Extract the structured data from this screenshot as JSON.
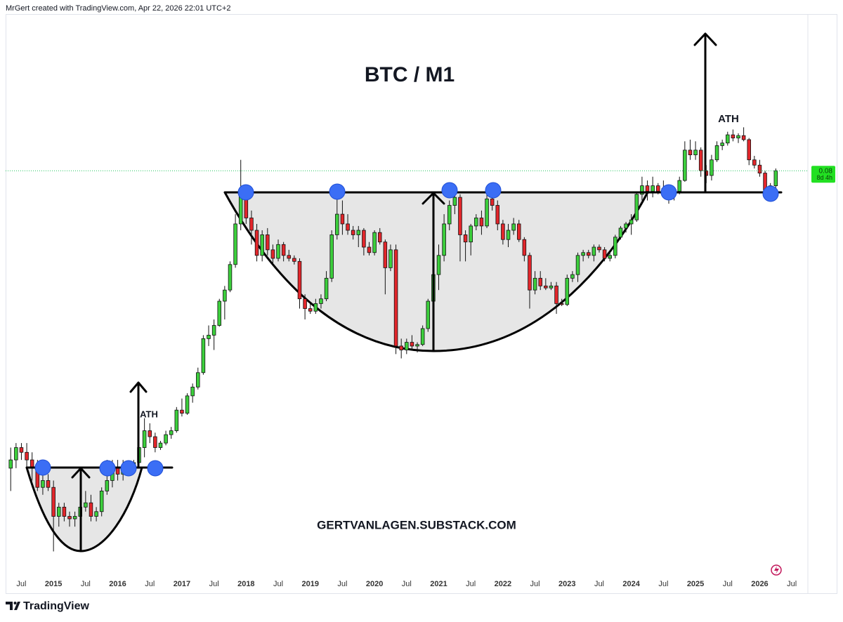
{
  "header": "MrGert created with TradingView.com, Apr 22, 2026 22:01 UTC+2",
  "footer": "TradingView",
  "chart_data": {
    "type": "candlestick",
    "title": "BTC / M1",
    "annotations": [
      "ATH",
      "ATH",
      "GERTVANLAGEN.SUBSTACK.COM"
    ],
    "last_price": 0.08,
    "countdown": "8d 4h",
    "yscale": "log",
    "ylim": [
      0.001,
      0.5
    ],
    "xlim": [
      "2014-03",
      "2026-10"
    ],
    "up_color": "#3ccf3c",
    "down_color": "#e3262b",
    "xticks": [
      {
        "value": "2014-07",
        "label": "Jul"
      },
      {
        "value": "2015-01",
        "label": "2015"
      },
      {
        "value": "2015-07",
        "label": "Jul"
      },
      {
        "value": "2016-01",
        "label": "2016"
      },
      {
        "value": "2016-07",
        "label": "Jul"
      },
      {
        "value": "2017-01",
        "label": "2017"
      },
      {
        "value": "2017-07",
        "label": "Jul"
      },
      {
        "value": "2018-01",
        "label": "2018"
      },
      {
        "value": "2018-07",
        "label": "Jul"
      },
      {
        "value": "2019-01",
        "label": "2019"
      },
      {
        "value": "2019-07",
        "label": "Jul"
      },
      {
        "value": "2020-01",
        "label": "2020"
      },
      {
        "value": "2020-07",
        "label": "Jul"
      },
      {
        "value": "2021-01",
        "label": "2021"
      },
      {
        "value": "2021-07",
        "label": "Jul"
      },
      {
        "value": "2022-01",
        "label": "2022"
      },
      {
        "value": "2022-07",
        "label": "Jul"
      },
      {
        "value": "2023-01",
        "label": "2023"
      },
      {
        "value": "2023-07",
        "label": "Jul"
      },
      {
        "value": "2024-01",
        "label": "2024"
      },
      {
        "value": "2024-07",
        "label": "Jul"
      },
      {
        "value": "2025-01",
        "label": "2025"
      },
      {
        "value": "2025-07",
        "label": "Jul"
      },
      {
        "value": "2026-01",
        "label": "2026"
      },
      {
        "value": "2026-07",
        "label": "Jul"
      }
    ],
    "x": [
      "2014-05",
      "2014-06",
      "2014-07",
      "2014-08",
      "2014-09",
      "2014-10",
      "2014-11",
      "2014-12",
      "2015-01",
      "2015-02",
      "2015-03",
      "2015-04",
      "2015-05",
      "2015-06",
      "2015-07",
      "2015-08",
      "2015-09",
      "2015-10",
      "2015-11",
      "2015-12",
      "2016-01",
      "2016-02",
      "2016-03",
      "2016-04",
      "2016-05",
      "2016-06",
      "2016-07",
      "2016-08",
      "2016-09",
      "2016-10",
      "2016-11",
      "2016-12",
      "2017-01",
      "2017-02",
      "2017-03",
      "2017-04",
      "2017-05",
      "2017-06",
      "2017-07",
      "2017-08",
      "2017-09",
      "2017-10",
      "2017-11",
      "2017-12",
      "2018-01",
      "2018-02",
      "2018-03",
      "2018-04",
      "2018-05",
      "2018-06",
      "2018-07",
      "2018-08",
      "2018-09",
      "2018-10",
      "2018-11",
      "2018-12",
      "2019-01",
      "2019-02",
      "2019-03",
      "2019-04",
      "2019-05",
      "2019-06",
      "2019-07",
      "2019-08",
      "2019-09",
      "2019-10",
      "2019-11",
      "2019-12",
      "2020-01",
      "2020-02",
      "2020-03",
      "2020-04",
      "2020-05",
      "2020-06",
      "2020-07",
      "2020-08",
      "2020-09",
      "2020-10",
      "2020-11",
      "2020-12",
      "2021-01",
      "2021-02",
      "2021-03",
      "2021-04",
      "2021-05",
      "2021-06",
      "2021-07",
      "2021-08",
      "2021-09",
      "2021-10",
      "2021-11",
      "2021-12",
      "2022-01",
      "2022-02",
      "2022-03",
      "2022-04",
      "2022-05",
      "2022-06",
      "2022-07",
      "2022-08",
      "2022-09",
      "2022-10",
      "2022-11",
      "2022-12",
      "2023-01",
      "2023-02",
      "2023-03",
      "2023-04",
      "2023-05",
      "2023-06",
      "2023-07",
      "2023-08",
      "2023-09",
      "2023-10",
      "2023-11",
      "2023-12",
      "2024-01",
      "2024-02",
      "2024-03",
      "2024-04",
      "2024-05",
      "2024-06",
      "2024-07",
      "2024-08",
      "2024-09",
      "2024-10",
      "2024-11",
      "2024-12",
      "2025-01",
      "2025-02",
      "2025-03",
      "2025-04",
      "2025-05",
      "2025-06",
      "2025-07",
      "2025-08",
      "2025-09",
      "2025-10",
      "2025-11",
      "2025-12",
      "2026-01",
      "2026-02",
      "2026-03",
      "2026-04"
    ],
    "ohlc": [
      [
        0.0032,
        0.004,
        0.0025,
        0.0035
      ],
      [
        0.0035,
        0.0042,
        0.0032,
        0.004
      ],
      [
        0.004,
        0.0042,
        0.0035,
        0.0038
      ],
      [
        0.0038,
        0.0042,
        0.0032,
        0.0035
      ],
      [
        0.0035,
        0.0038,
        0.0028,
        0.0032
      ],
      [
        0.0032,
        0.0035,
        0.0025,
        0.0026
      ],
      [
        0.0026,
        0.0032,
        0.0024,
        0.0028
      ],
      [
        0.0028,
        0.003,
        0.0025,
        0.0026
      ],
      [
        0.0026,
        0.0028,
        0.0013,
        0.0019
      ],
      [
        0.0019,
        0.0022,
        0.0017,
        0.0021
      ],
      [
        0.0021,
        0.0022,
        0.0018,
        0.0019
      ],
      [
        0.0019,
        0.002,
        0.0017,
        0.00185
      ],
      [
        0.00185,
        0.002,
        0.0017,
        0.0019
      ],
      [
        0.0019,
        0.0022,
        0.0018,
        0.0021
      ],
      [
        0.0021,
        0.0025,
        0.002,
        0.0022
      ],
      [
        0.0022,
        0.0024,
        0.0018,
        0.0019
      ],
      [
        0.0019,
        0.0021,
        0.0018,
        0.002
      ],
      [
        0.002,
        0.0026,
        0.0019,
        0.0025
      ],
      [
        0.0025,
        0.0035,
        0.0024,
        0.0028
      ],
      [
        0.0028,
        0.0035,
        0.0026,
        0.0032
      ],
      [
        0.0032,
        0.0035,
        0.0028,
        0.003
      ],
      [
        0.003,
        0.0035,
        0.0028,
        0.0032
      ],
      [
        0.0032,
        0.0034,
        0.003,
        0.0031
      ],
      [
        0.0031,
        0.0035,
        0.003,
        0.0034
      ],
      [
        0.0034,
        0.0042,
        0.0033,
        0.004
      ],
      [
        0.004,
        0.0055,
        0.0036,
        0.0048
      ],
      [
        0.0048,
        0.0052,
        0.0042,
        0.0045
      ],
      [
        0.0045,
        0.0047,
        0.0038,
        0.004
      ],
      [
        0.004,
        0.0043,
        0.0039,
        0.0042
      ],
      [
        0.0042,
        0.0048,
        0.0041,
        0.0046
      ],
      [
        0.0046,
        0.005,
        0.0044,
        0.0048
      ],
      [
        0.0048,
        0.0062,
        0.0047,
        0.006
      ],
      [
        0.006,
        0.0068,
        0.0056,
        0.0058
      ],
      [
        0.0058,
        0.0072,
        0.0057,
        0.007
      ],
      [
        0.007,
        0.008,
        0.0065,
        0.0077
      ],
      [
        0.0077,
        0.0095,
        0.0075,
        0.009
      ],
      [
        0.009,
        0.0135,
        0.0088,
        0.013
      ],
      [
        0.013,
        0.015,
        0.012,
        0.0135
      ],
      [
        0.0135,
        0.016,
        0.0115,
        0.015
      ],
      [
        0.015,
        0.02,
        0.0148,
        0.0195
      ],
      [
        0.0195,
        0.023,
        0.016,
        0.022
      ],
      [
        0.022,
        0.03,
        0.0215,
        0.029
      ],
      [
        0.029,
        0.05,
        0.028,
        0.045
      ],
      [
        0.045,
        0.09,
        0.042,
        0.062
      ],
      [
        0.062,
        0.068,
        0.045,
        0.048
      ],
      [
        0.048,
        0.052,
        0.036,
        0.042
      ],
      [
        0.042,
        0.045,
        0.03,
        0.032
      ],
      [
        0.032,
        0.042,
        0.03,
        0.04
      ],
      [
        0.04,
        0.043,
        0.032,
        0.034
      ],
      [
        0.034,
        0.036,
        0.029,
        0.031
      ],
      [
        0.031,
        0.038,
        0.03,
        0.036
      ],
      [
        0.036,
        0.037,
        0.03,
        0.032
      ],
      [
        0.032,
        0.034,
        0.03,
        0.031
      ],
      [
        0.031,
        0.032,
        0.029,
        0.03
      ],
      [
        0.03,
        0.031,
        0.018,
        0.02
      ],
      [
        0.02,
        0.021,
        0.016,
        0.018
      ],
      [
        0.018,
        0.019,
        0.017,
        0.0175
      ],
      [
        0.0175,
        0.02,
        0.017,
        0.019
      ],
      [
        0.019,
        0.021,
        0.018,
        0.02
      ],
      [
        0.02,
        0.027,
        0.0195,
        0.025
      ],
      [
        0.025,
        0.042,
        0.024,
        0.04
      ],
      [
        0.04,
        0.068,
        0.038,
        0.05
      ],
      [
        0.05,
        0.058,
        0.04,
        0.045
      ],
      [
        0.045,
        0.05,
        0.04,
        0.042
      ],
      [
        0.042,
        0.044,
        0.038,
        0.04
      ],
      [
        0.04,
        0.044,
        0.035,
        0.042
      ],
      [
        0.042,
        0.043,
        0.032,
        0.035
      ],
      [
        0.035,
        0.037,
        0.032,
        0.033
      ],
      [
        0.033,
        0.042,
        0.032,
        0.041
      ],
      [
        0.041,
        0.043,
        0.036,
        0.037
      ],
      [
        0.037,
        0.038,
        0.021,
        0.028
      ],
      [
        0.028,
        0.036,
        0.027,
        0.034
      ],
      [
        0.034,
        0.036,
        0.011,
        0.012
      ],
      [
        0.012,
        0.013,
        0.0105,
        0.0115
      ],
      [
        0.0115,
        0.013,
        0.011,
        0.0125
      ],
      [
        0.0125,
        0.0135,
        0.0115,
        0.012
      ],
      [
        0.012,
        0.0125,
        0.0112,
        0.0122
      ],
      [
        0.0122,
        0.015,
        0.012,
        0.0145
      ],
      [
        0.0145,
        0.02,
        0.014,
        0.0195
      ],
      [
        0.0195,
        0.028,
        0.019,
        0.026
      ],
      [
        0.026,
        0.036,
        0.022,
        0.032
      ],
      [
        0.032,
        0.05,
        0.03,
        0.045
      ],
      [
        0.045,
        0.058,
        0.042,
        0.055
      ],
      [
        0.055,
        0.065,
        0.05,
        0.06
      ],
      [
        0.06,
        0.062,
        0.03,
        0.04
      ],
      [
        0.04,
        0.042,
        0.03,
        0.037
      ],
      [
        0.037,
        0.045,
        0.032,
        0.044
      ],
      [
        0.044,
        0.05,
        0.042,
        0.048
      ],
      [
        0.048,
        0.052,
        0.04,
        0.044
      ],
      [
        0.044,
        0.062,
        0.043,
        0.059
      ],
      [
        0.059,
        0.066,
        0.052,
        0.055
      ],
      [
        0.055,
        0.058,
        0.042,
        0.045
      ],
      [
        0.045,
        0.047,
        0.036,
        0.038
      ],
      [
        0.038,
        0.045,
        0.035,
        0.042
      ],
      [
        0.042,
        0.048,
        0.04,
        0.045
      ],
      [
        0.045,
        0.047,
        0.037,
        0.038
      ],
      [
        0.038,
        0.039,
        0.03,
        0.032
      ],
      [
        0.032,
        0.033,
        0.018,
        0.022
      ],
      [
        0.022,
        0.027,
        0.021,
        0.025
      ],
      [
        0.025,
        0.027,
        0.022,
        0.023
      ],
      [
        0.023,
        0.025,
        0.022,
        0.0225
      ],
      [
        0.0225,
        0.024,
        0.022,
        0.023
      ],
      [
        0.023,
        0.024,
        0.017,
        0.019
      ],
      [
        0.019,
        0.02,
        0.0185,
        0.0188
      ],
      [
        0.0188,
        0.026,
        0.0185,
        0.025
      ],
      [
        0.025,
        0.027,
        0.024,
        0.026
      ],
      [
        0.026,
        0.033,
        0.024,
        0.032
      ],
      [
        0.032,
        0.034,
        0.03,
        0.033
      ],
      [
        0.033,
        0.034,
        0.031,
        0.032
      ],
      [
        0.032,
        0.036,
        0.03,
        0.035
      ],
      [
        0.035,
        0.036,
        0.033,
        0.034
      ],
      [
        0.034,
        0.035,
        0.03,
        0.031
      ],
      [
        0.031,
        0.033,
        0.03,
        0.032
      ],
      [
        0.032,
        0.04,
        0.031,
        0.039
      ],
      [
        0.039,
        0.044,
        0.038,
        0.043
      ],
      [
        0.043,
        0.046,
        0.041,
        0.045
      ],
      [
        0.045,
        0.05,
        0.04,
        0.047
      ],
      [
        0.047,
        0.064,
        0.046,
        0.062
      ],
      [
        0.062,
        0.075,
        0.058,
        0.068
      ],
      [
        0.068,
        0.072,
        0.058,
        0.064
      ],
      [
        0.064,
        0.075,
        0.06,
        0.068
      ],
      [
        0.068,
        0.07,
        0.062,
        0.064
      ],
      [
        0.064,
        0.072,
        0.06,
        0.066
      ],
      [
        0.066,
        0.068,
        0.056,
        0.062
      ],
      [
        0.062,
        0.066,
        0.058,
        0.064
      ],
      [
        0.064,
        0.075,
        0.062,
        0.072
      ],
      [
        0.072,
        0.11,
        0.071,
        0.1
      ],
      [
        0.1,
        0.112,
        0.09,
        0.095
      ],
      [
        0.095,
        0.11,
        0.09,
        0.1
      ],
      [
        0.1,
        0.103,
        0.075,
        0.08
      ],
      [
        0.08,
        0.085,
        0.07,
        0.076
      ],
      [
        0.076,
        0.095,
        0.072,
        0.09
      ],
      [
        0.09,
        0.11,
        0.088,
        0.105
      ],
      [
        0.105,
        0.112,
        0.1,
        0.108
      ],
      [
        0.108,
        0.122,
        0.105,
        0.118
      ],
      [
        0.118,
        0.125,
        0.11,
        0.114
      ],
      [
        0.114,
        0.12,
        0.108,
        0.117
      ],
      [
        0.117,
        0.128,
        0.11,
        0.112
      ],
      [
        0.112,
        0.114,
        0.085,
        0.09
      ],
      [
        0.09,
        0.094,
        0.082,
        0.085
      ],
      [
        0.085,
        0.09,
        0.075,
        0.078
      ],
      [
        0.078,
        0.08,
        0.062,
        0.065
      ],
      [
        0.065,
        0.07,
        0.06,
        0.068
      ],
      [
        0.068,
        0.082,
        0.066,
        0.08
      ]
    ]
  }
}
